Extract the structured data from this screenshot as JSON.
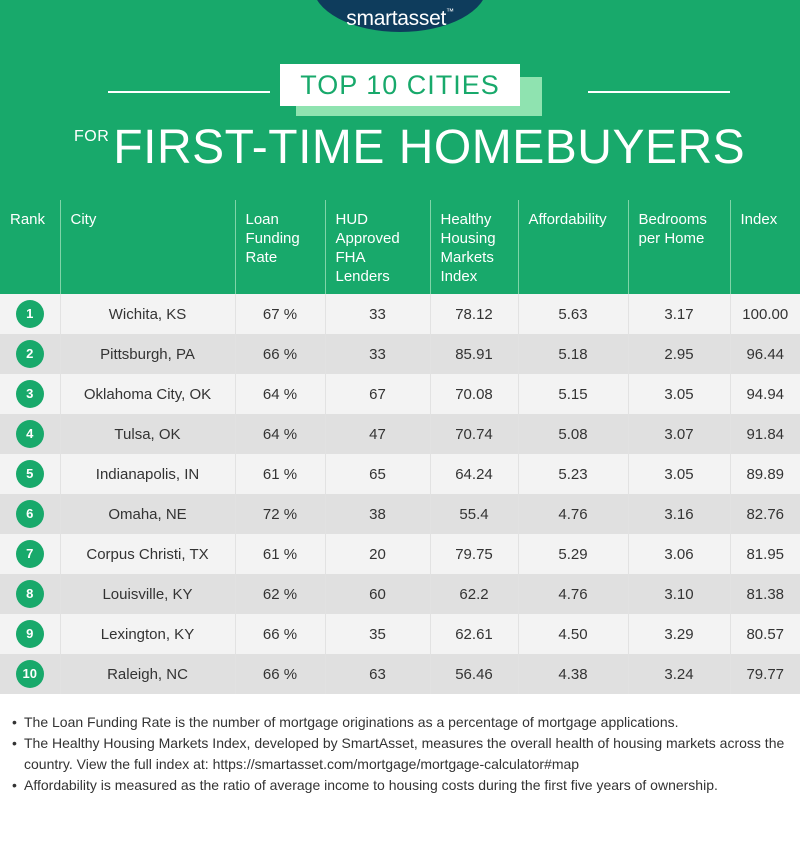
{
  "brand": {
    "logo": "smartasset",
    "trademark": "™"
  },
  "title": {
    "ribbon": "TOP 10 CITIES",
    "prefix": "FOR",
    "main": "FIRST-TIME HOMEBUYERS"
  },
  "colors": {
    "accent": "#18a96b",
    "logo_bg": "#0e3c5c",
    "ribbon_shadow": "#8fe3b0"
  },
  "chart_data": {
    "type": "table",
    "columns": [
      "Rank",
      "City",
      "Loan Funding Rate",
      "HUD Approved FHA Lenders",
      "Healthy Housing Markets Index",
      "Affordability",
      "Bedrooms per Home",
      "Index"
    ],
    "rows": [
      {
        "rank": "1",
        "city": "Wichita, KS",
        "loan_rate": "67 %",
        "fha": "33",
        "hhmi": "78.12",
        "afford": "5.63",
        "bedrooms": "3.17",
        "index": "100.00"
      },
      {
        "rank": "2",
        "city": "Pittsburgh, PA",
        "loan_rate": "66 %",
        "fha": "33",
        "hhmi": "85.91",
        "afford": "5.18",
        "bedrooms": "2.95",
        "index": "96.44"
      },
      {
        "rank": "3",
        "city": "Oklahoma City, OK",
        "loan_rate": "64 %",
        "fha": "67",
        "hhmi": "70.08",
        "afford": "5.15",
        "bedrooms": "3.05",
        "index": "94.94"
      },
      {
        "rank": "4",
        "city": "Tulsa, OK",
        "loan_rate": "64 %",
        "fha": "47",
        "hhmi": "70.74",
        "afford": "5.08",
        "bedrooms": "3.07",
        "index": "91.84"
      },
      {
        "rank": "5",
        "city": "Indianapolis, IN",
        "loan_rate": "61 %",
        "fha": "65",
        "hhmi": "64.24",
        "afford": "5.23",
        "bedrooms": "3.05",
        "index": "89.89"
      },
      {
        "rank": "6",
        "city": "Omaha, NE",
        "loan_rate": "72 %",
        "fha": "38",
        "hhmi": "55.4",
        "afford": "4.76",
        "bedrooms": "3.16",
        "index": "82.76"
      },
      {
        "rank": "7",
        "city": "Corpus Christi, TX",
        "loan_rate": "61 %",
        "fha": "20",
        "hhmi": "79.75",
        "afford": "5.29",
        "bedrooms": "3.06",
        "index": "81.95"
      },
      {
        "rank": "8",
        "city": "Louisville, KY",
        "loan_rate": "62 %",
        "fha": "60",
        "hhmi": "62.2",
        "afford": "4.76",
        "bedrooms": "3.10",
        "index": "81.38"
      },
      {
        "rank": "9",
        "city": "Lexington, KY",
        "loan_rate": "66 %",
        "fha": "35",
        "hhmi": "62.61",
        "afford": "4.50",
        "bedrooms": "3.29",
        "index": "80.57"
      },
      {
        "rank": "10",
        "city": "Raleigh, NC",
        "loan_rate": "66 %",
        "fha": "63",
        "hhmi": "56.46",
        "afford": "4.38",
        "bedrooms": "3.24",
        "index": "79.77"
      }
    ]
  },
  "notes": [
    "The Loan Funding Rate is the number of mortgage originations as a percentage of mortgage applications.",
    "The Healthy Housing Markets Index, developed by SmartAsset, measures the overall health of housing markets across the country. View the full index at: https://smartasset.com/mortgage/mortgage-calculator#map",
    "Affordability is measured as the ratio of average income to housing costs during the first five years of ownership."
  ]
}
